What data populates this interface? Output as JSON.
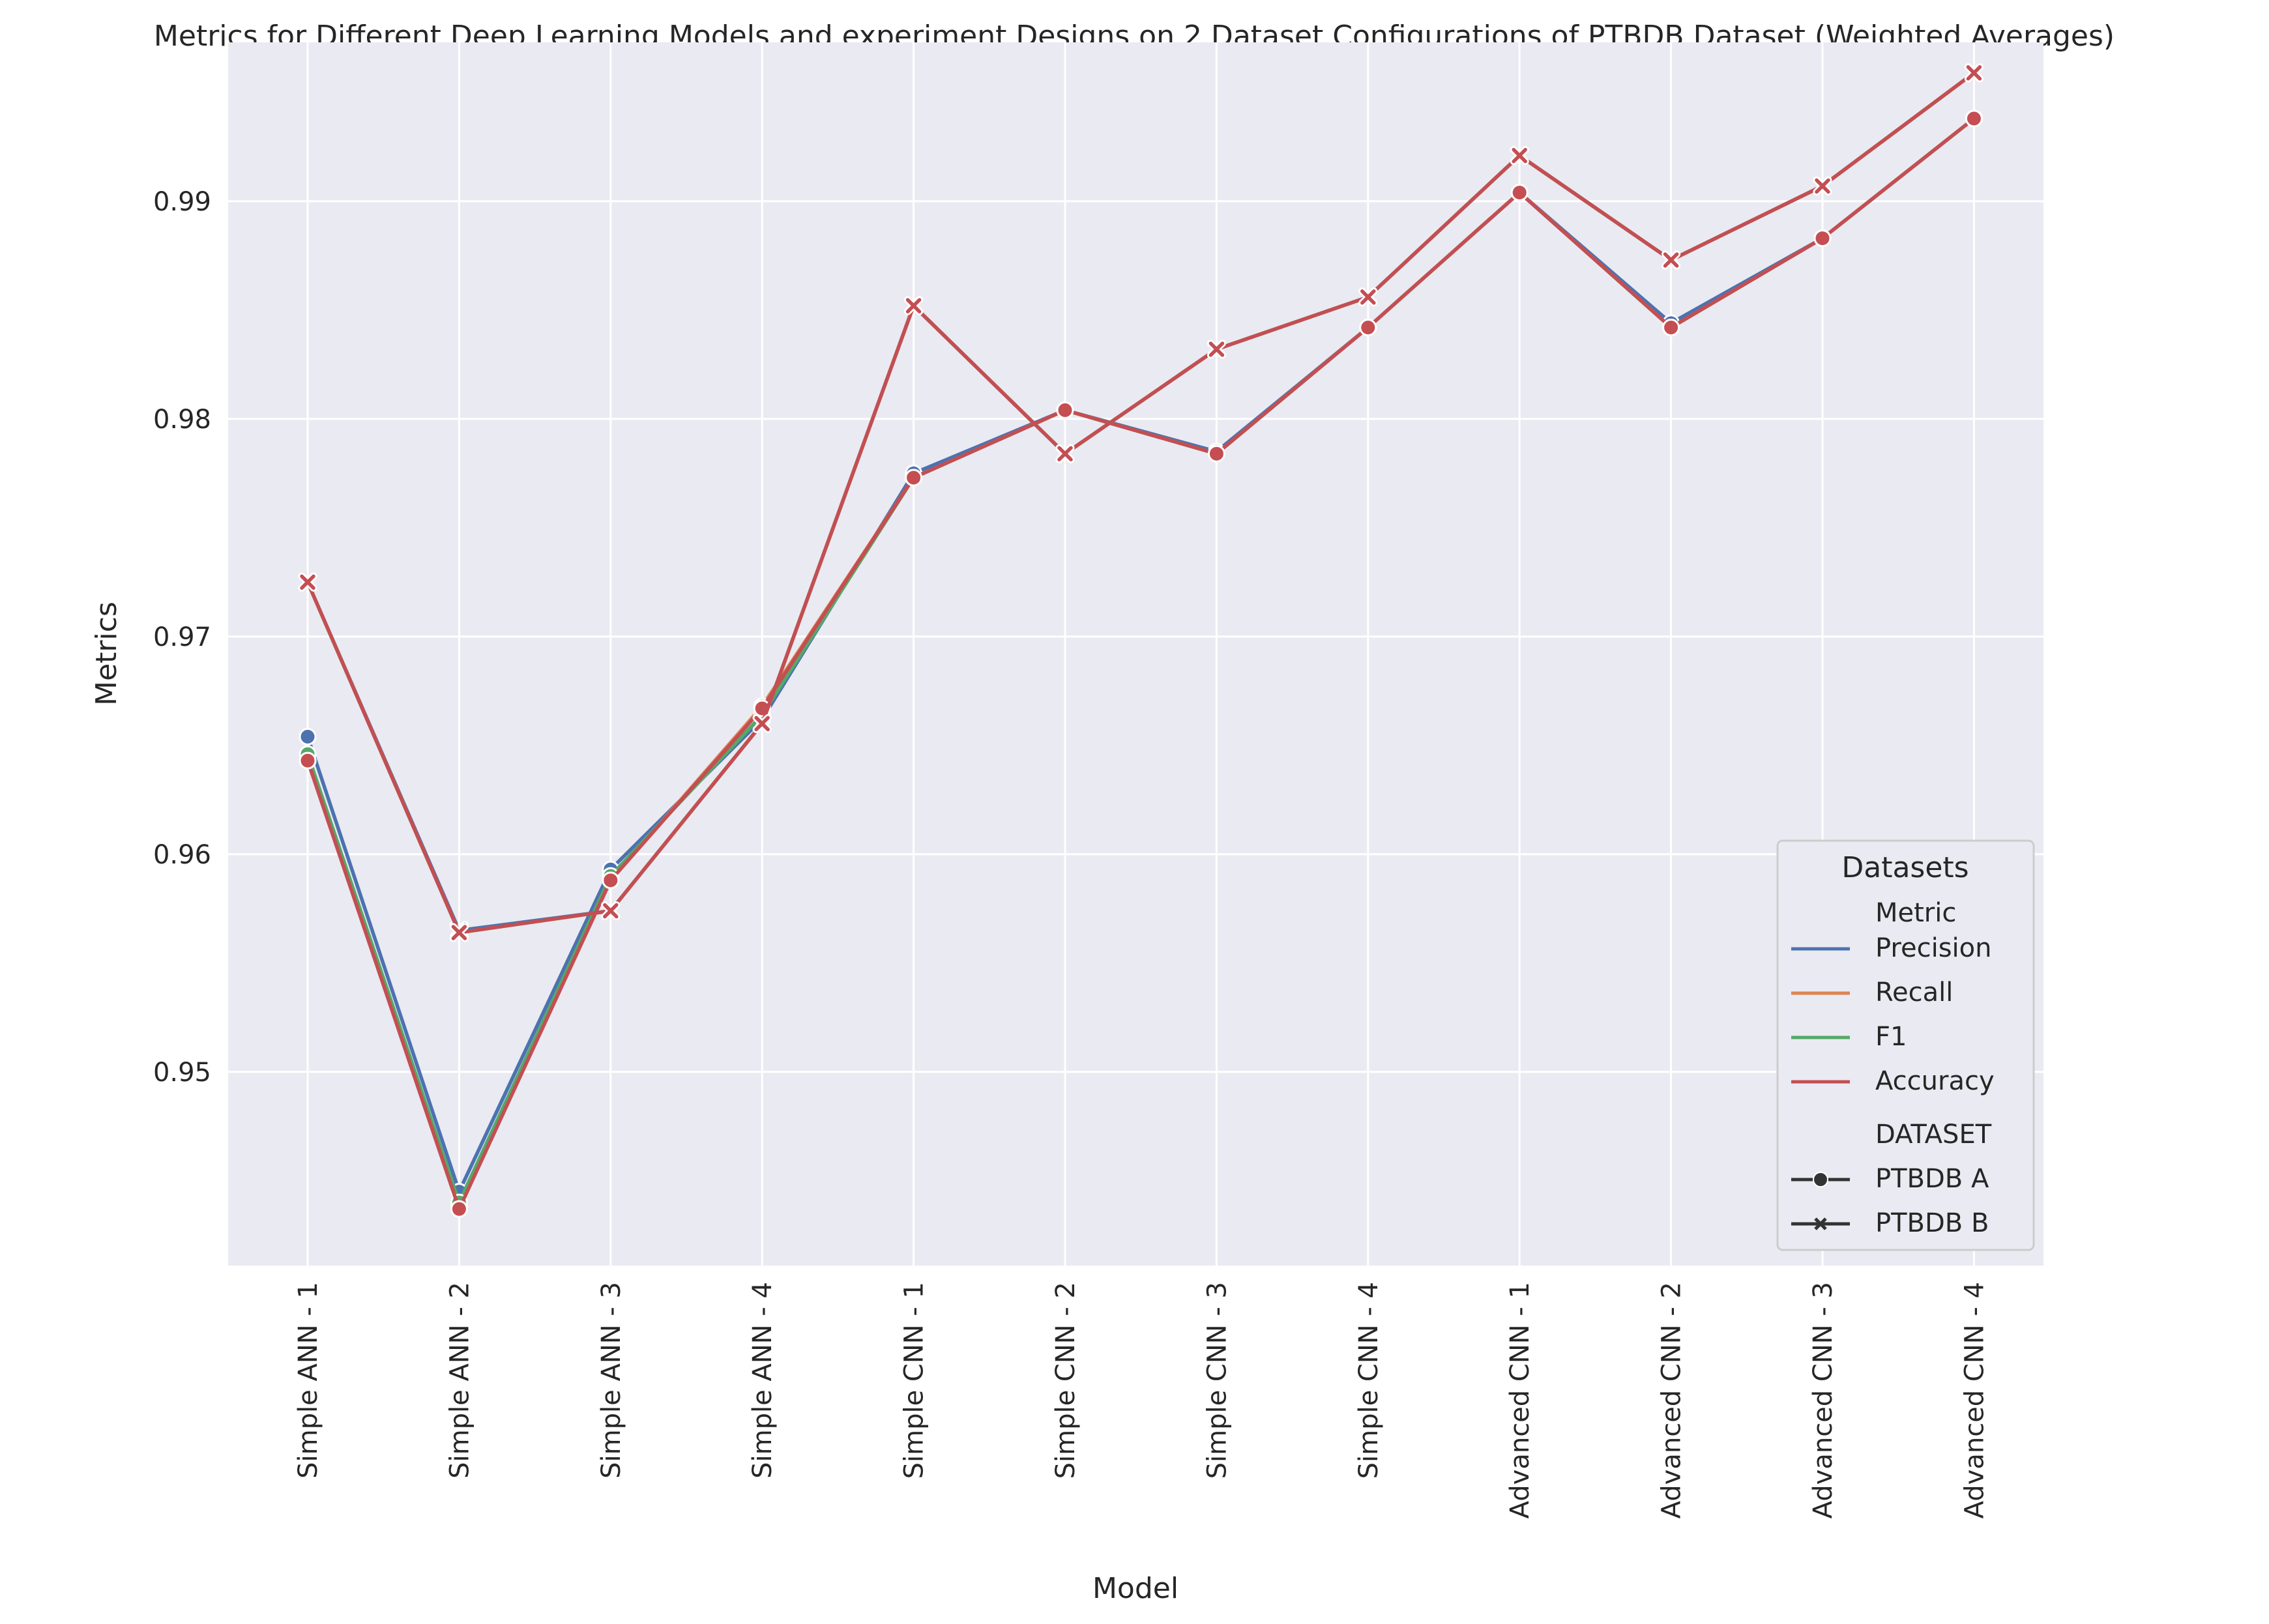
{
  "chart_data": {
    "type": "line",
    "title": "Metrics for Different Deep Learning Models and experiment Designs on 2 Dataset Configurations of PTBDB Dataset (Weighted Averages)",
    "xlabel": "Model",
    "ylabel": "Metrics",
    "categories": [
      "Simple ANN - 1",
      "Simple ANN - 2",
      "Simple ANN - 3",
      "Simple ANN - 4",
      "Simple CNN - 1",
      "Simple CNN - 2",
      "Simple CNN - 3",
      "Simple CNN - 4",
      "Advanced CNN - 1",
      "Advanced CNN - 2",
      "Advanced CNN - 3",
      "Advanced CNN - 4"
    ],
    "ylim": [
      0.9411,
      0.9973
    ],
    "yticks": [
      0.95,
      0.96,
      0.97,
      0.98,
      0.99
    ],
    "ytick_labels": [
      "0.95",
      "0.96",
      "0.97",
      "0.98",
      "0.99"
    ],
    "grid": true,
    "background": "#eaeaf2",
    "series": [
      {
        "name": "Precision",
        "dataset": "PTBDB A",
        "color": "#4c72b0",
        "marker": "circle",
        "values": [
          0.9654,
          0.9445,
          0.9593,
          0.9662,
          0.9775,
          0.9804,
          0.9785,
          0.9842,
          0.9904,
          0.9844,
          0.9883,
          0.9938
        ]
      },
      {
        "name": "Recall",
        "dataset": "PTBDB A",
        "color": "#dd8452",
        "marker": "circle",
        "values": [
          0.9643,
          0.9438,
          0.9588,
          0.9668,
          0.9773,
          0.9804,
          0.9784,
          0.9842,
          0.9904,
          0.9842,
          0.9883,
          0.9938
        ]
      },
      {
        "name": "F1",
        "dataset": "PTBDB A",
        "color": "#55a868",
        "marker": "circle",
        "values": [
          0.9646,
          0.944,
          0.959,
          0.9664,
          0.9773,
          0.9804,
          0.9784,
          0.9842,
          0.9904,
          0.9842,
          0.9883,
          0.9938
        ]
      },
      {
        "name": "Accuracy",
        "dataset": "PTBDB A",
        "color": "#c44e52",
        "marker": "circle",
        "values": [
          0.9643,
          0.9437,
          0.9588,
          0.9667,
          0.9773,
          0.9804,
          0.9784,
          0.9842,
          0.9904,
          0.9842,
          0.9883,
          0.9938
        ]
      },
      {
        "name": "Precision",
        "dataset": "PTBDB B",
        "color": "#4c72b0",
        "marker": "x",
        "values": [
          0.9725,
          0.9565,
          0.9574,
          0.966,
          0.9852,
          0.9784,
          0.9832,
          0.9856,
          0.9921,
          0.9873,
          0.9907,
          0.9959
        ]
      },
      {
        "name": "Recall",
        "dataset": "PTBDB B",
        "color": "#dd8452",
        "marker": "x",
        "values": [
          0.9725,
          0.9564,
          0.9574,
          0.966,
          0.9852,
          0.9784,
          0.9832,
          0.9856,
          0.9921,
          0.9873,
          0.9907,
          0.9959
        ]
      },
      {
        "name": "F1",
        "dataset": "PTBDB B",
        "color": "#55a868",
        "marker": "x",
        "values": [
          0.9725,
          0.9564,
          0.9574,
          0.966,
          0.9852,
          0.9784,
          0.9832,
          0.9856,
          0.9921,
          0.9873,
          0.9907,
          0.9959
        ]
      },
      {
        "name": "Accuracy",
        "dataset": "PTBDB B",
        "color": "#c44e52",
        "marker": "x",
        "values": [
          0.9725,
          0.9564,
          0.9574,
          0.966,
          0.9852,
          0.9784,
          0.9832,
          0.9856,
          0.9921,
          0.9873,
          0.9907,
          0.9959
        ]
      }
    ],
    "legend": {
      "title": "Datasets",
      "placement": "lower-right",
      "metric_header": "Metric",
      "metrics": [
        {
          "label": "Precision",
          "color": "#4c72b0"
        },
        {
          "label": "Recall",
          "color": "#dd8452"
        },
        {
          "label": "F1",
          "color": "#55a868"
        },
        {
          "label": "Accuracy",
          "color": "#c44e52"
        }
      ],
      "dataset_header": "DATASET",
      "datasets": [
        {
          "label": "PTBDB A",
          "marker": "circle"
        },
        {
          "label": "PTBDB B",
          "marker": "x"
        }
      ]
    }
  }
}
